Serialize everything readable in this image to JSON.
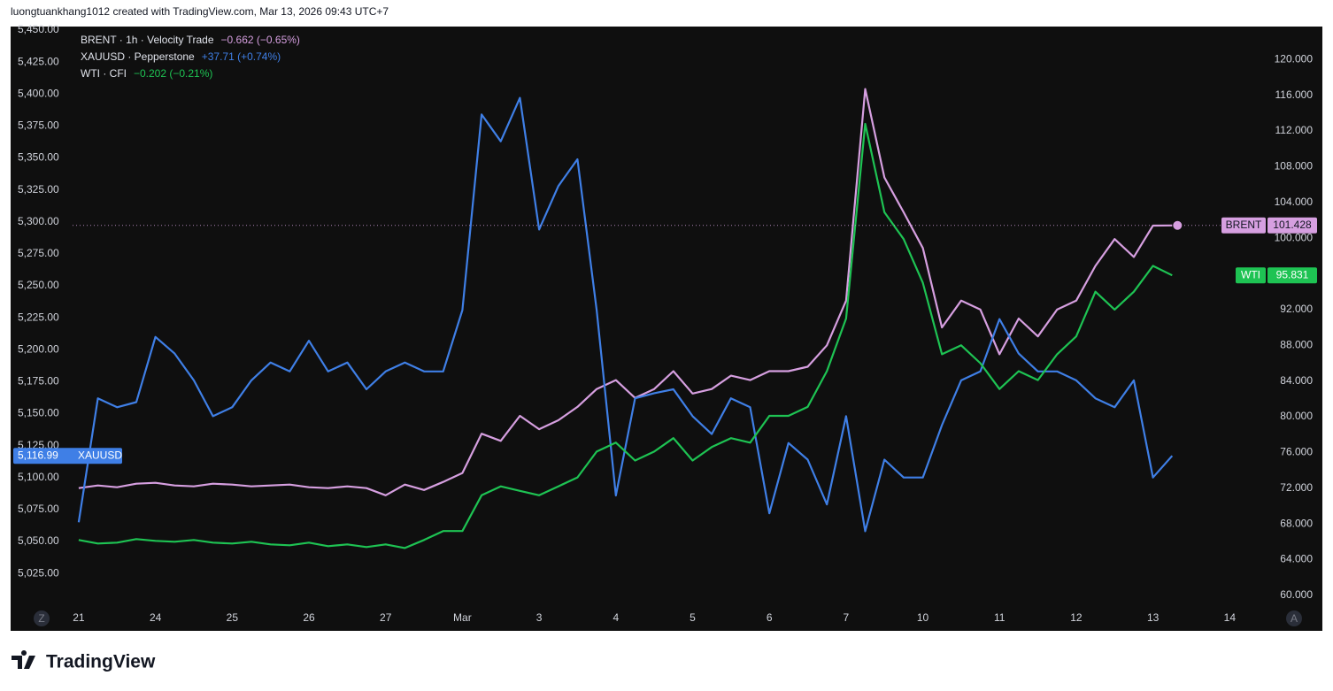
{
  "chart_data": {
    "type": "line",
    "title": "luongtuankhang1012 created with TradingView.com, Mar 13, 2026 09:43 UTC+7",
    "brand": "TradingView",
    "buttons": [
      "Z",
      "A"
    ],
    "x": [
      0,
      0.25,
      0.5,
      0.75,
      1,
      1.25,
      1.5,
      1.75,
      2,
      2.25,
      2.5,
      2.75,
      3,
      3.25,
      3.5,
      3.75,
      4,
      4.25,
      4.5,
      4.75,
      5,
      5.25,
      5.5,
      5.75,
      6,
      6.25,
      6.5,
      6.75,
      7,
      7.25,
      7.5,
      7.75,
      8,
      8.25,
      8.5,
      8.75,
      9,
      9.25,
      9.5,
      9.75,
      10,
      10.25,
      10.5,
      10.75,
      11,
      11.25,
      11.5,
      11.75,
      12,
      12.25,
      12.5,
      12.75,
      13,
      13.25,
      13.5,
      13.75,
      14,
      14.25
    ],
    "xlim": [
      -0.08,
      15.4
    ],
    "xticks": [
      {
        "value": 0,
        "label": "21"
      },
      {
        "value": 1,
        "label": "24"
      },
      {
        "value": 2,
        "label": "25"
      },
      {
        "value": 3,
        "label": "26"
      },
      {
        "value": 4,
        "label": "27"
      },
      {
        "value": 5,
        "label": "Mar"
      },
      {
        "value": 6,
        "label": "3"
      },
      {
        "value": 7,
        "label": "4"
      },
      {
        "value": 8,
        "label": "5"
      },
      {
        "value": 9,
        "label": "6"
      },
      {
        "value": 10,
        "label": "7"
      },
      {
        "value": 11,
        "label": "10"
      },
      {
        "value": 12,
        "label": "11"
      },
      {
        "value": 13,
        "label": "12"
      },
      {
        "value": 14,
        "label": "13"
      },
      {
        "value": 15,
        "label": "14"
      }
    ],
    "ylim": [
      4996,
      5452.8
    ],
    "yticks": [
      {
        "value": 5025,
        "label": "5,025.00"
      },
      {
        "value": 5050,
        "label": "5,050.00"
      },
      {
        "value": 5075,
        "label": "5,075.00"
      },
      {
        "value": 5100,
        "label": "5,100.00"
      },
      {
        "value": 5125,
        "label": "5,125.00"
      },
      {
        "value": 5150,
        "label": "5,150.00"
      },
      {
        "value": 5175,
        "label": "5,175.00"
      },
      {
        "value": 5200,
        "label": "5,200.00"
      },
      {
        "value": 5225,
        "label": "5,225.00"
      },
      {
        "value": 5250,
        "label": "5,250.00"
      },
      {
        "value": 5275,
        "label": "5,275.00"
      },
      {
        "value": 5300,
        "label": "5,300.00"
      },
      {
        "value": 5325,
        "label": "5,325.00"
      },
      {
        "value": 5350,
        "label": "5,350.00"
      },
      {
        "value": 5375,
        "label": "5,375.00"
      },
      {
        "value": 5400,
        "label": "5,400.00"
      },
      {
        "value": 5425,
        "label": "5,425.00"
      },
      {
        "value": 5450,
        "label": "5,450.00"
      }
    ],
    "y2lim": [
      58.3,
      123.7
    ],
    "y2ticks": [
      {
        "value": 60,
        "label": "60.000"
      },
      {
        "value": 64,
        "label": "64.000"
      },
      {
        "value": 68,
        "label": "68.000"
      },
      {
        "value": 72,
        "label": "72.000"
      },
      {
        "value": 76,
        "label": "76.000"
      },
      {
        "value": 80,
        "label": "80.000"
      },
      {
        "value": 84,
        "label": "84.000"
      },
      {
        "value": 88,
        "label": "88.000"
      },
      {
        "value": 92,
        "label": "92.000"
      },
      {
        "value": 96,
        "label": "96.000"
      },
      {
        "value": 100,
        "label": "100.000"
      },
      {
        "value": 104,
        "label": "104.000"
      },
      {
        "value": 108,
        "label": "108.000"
      },
      {
        "value": 112,
        "label": "112.000"
      },
      {
        "value": 116,
        "label": "116.000"
      },
      {
        "value": 120,
        "label": "120.000"
      }
    ],
    "series": [
      {
        "name": "BRENT · 1h · Velocity Trade",
        "change": "−0.662 (−0.65%)",
        "tag": "BRENT",
        "axis": "y2",
        "color": "#d69fe0",
        "last": {
          "value": 101.428,
          "label": "101.428"
        },
        "values": [
          72,
          72.3,
          72.1,
          72.5,
          72.6,
          72.3,
          72.2,
          72.5,
          72.4,
          72.2,
          72.3,
          72.4,
          72.1,
          72.0,
          72.2,
          72.0,
          71.2,
          72.4,
          71.8,
          72.7,
          73.7,
          78.1,
          77.3,
          80.1,
          78.6,
          79.6,
          81.1,
          83.1,
          84.1,
          82.1,
          83.1,
          85.1,
          82.6,
          83.1,
          84.6,
          84.1,
          85.1,
          85.1,
          85.6,
          88.0,
          93.0,
          116.7,
          106.8,
          102.9,
          98.9,
          90.0,
          93.0,
          92.0,
          87.0,
          91.0,
          89.0,
          92.0,
          93.0,
          96.9,
          99.9,
          97.9,
          101.4,
          101.428
        ]
      },
      {
        "name": "XAUUSD · Pepperstone",
        "change": "+37.71 (+0.74%)",
        "tag": "XAUUSD",
        "axis": "y",
        "color": "#3f7fe6",
        "last": {
          "value": 5116.99,
          "label": "5,116.99"
        },
        "values": [
          5065,
          5162,
          5155,
          5159,
          5210,
          5197,
          5176,
          5148,
          5155,
          5176,
          5190,
          5183,
          5207,
          5183,
          5190,
          5169,
          5183,
          5190,
          5183,
          5183,
          5231,
          5384,
          5363,
          5397,
          5294,
          5328,
          5349,
          5231,
          5086,
          5162,
          5166,
          5169,
          5148,
          5134,
          5162,
          5155,
          5072,
          5127,
          5114,
          5079,
          5148,
          5058,
          5114,
          5100,
          5100,
          5141,
          5176,
          5183,
          5224,
          5197,
          5183,
          5183,
          5176,
          5162,
          5155,
          5176,
          5100,
          5116.99
        ]
      },
      {
        "name": "WTI · CFI",
        "change": "−0.202 (−0.21%)",
        "tag": "WTI",
        "axis": "y2",
        "color": "#1ec353",
        "last": {
          "value": 95.831,
          "label": "95.831"
        },
        "values": [
          66.2,
          65.8,
          65.9,
          66.3,
          66.1,
          66.0,
          66.2,
          65.9,
          65.8,
          66.0,
          65.7,
          65.6,
          65.9,
          65.5,
          65.7,
          65.4,
          65.7,
          65.3,
          66.2,
          67.2,
          67.2,
          71.2,
          72.2,
          71.7,
          71.2,
          72.2,
          73.2,
          76.1,
          77.1,
          75.1,
          76.1,
          77.6,
          75.1,
          76.6,
          77.6,
          77.1,
          80.1,
          80.1,
          81.1,
          85.1,
          91.0,
          112.8,
          102.9,
          99.9,
          95.0,
          87.0,
          88.0,
          86.0,
          83.1,
          85.1,
          84.1,
          87.0,
          89.0,
          94.0,
          92.0,
          94.0,
          96.9,
          95.831
        ]
      }
    ]
  }
}
